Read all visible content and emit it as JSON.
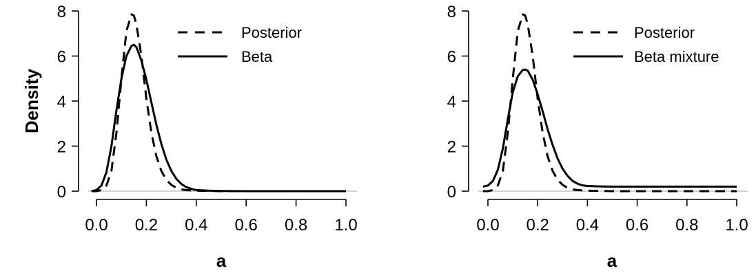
{
  "chart_data": [
    {
      "type": "line",
      "title": "",
      "xlabel": "a",
      "ylabel": "Density",
      "xlim": [
        -0.03,
        1.03
      ],
      "ylim": [
        0,
        8
      ],
      "x_ticks": [
        "0.0",
        "0.2",
        "0.4",
        "0.6",
        "0.8",
        "1.0"
      ],
      "y_ticks": [
        "0",
        "2",
        "4",
        "6",
        "8"
      ],
      "legend": "top-right",
      "series": [
        {
          "name": "Posterior",
          "style": "dashed",
          "color": "#000000",
          "x": [
            -0.02,
            0.0,
            0.02,
            0.04,
            0.06,
            0.08,
            0.1,
            0.12,
            0.14,
            0.15,
            0.16,
            0.18,
            0.2,
            0.22,
            0.24,
            0.26,
            0.28,
            0.3,
            0.32,
            0.34,
            0.36,
            0.38,
            0.4,
            0.45,
            0.5,
            0.6,
            0.7,
            0.8,
            0.9,
            1.0
          ],
          "y": [
            0.0,
            0.0,
            0.05,
            0.25,
            0.9,
            2.6,
            5.0,
            7.1,
            7.85,
            7.8,
            7.4,
            6.0,
            4.1,
            2.6,
            1.55,
            0.9,
            0.5,
            0.28,
            0.15,
            0.08,
            0.05,
            0.03,
            0.02,
            0.01,
            0.0,
            0.0,
            0.0,
            0.0,
            0.0,
            0.0
          ]
        },
        {
          "name": "Beta",
          "style": "solid",
          "color": "#000000",
          "x": [
            -0.02,
            0.0,
            0.02,
            0.04,
            0.06,
            0.08,
            0.1,
            0.12,
            0.14,
            0.15,
            0.16,
            0.18,
            0.2,
            0.22,
            0.24,
            0.26,
            0.28,
            0.3,
            0.32,
            0.34,
            0.36,
            0.38,
            0.4,
            0.45,
            0.5,
            0.6,
            0.7,
            0.8,
            0.9,
            1.0
          ],
          "y": [
            0.0,
            0.05,
            0.25,
            0.85,
            2.0,
            3.6,
            5.0,
            6.0,
            6.45,
            6.5,
            6.4,
            5.8,
            4.95,
            3.95,
            2.95,
            2.1,
            1.4,
            0.9,
            0.55,
            0.32,
            0.18,
            0.1,
            0.05,
            0.02,
            0.01,
            0.0,
            0.0,
            0.0,
            0.0,
            0.0
          ]
        }
      ]
    },
    {
      "type": "line",
      "title": "",
      "xlabel": "a",
      "ylabel": "",
      "xlim": [
        -0.03,
        1.03
      ],
      "ylim": [
        0,
        8
      ],
      "x_ticks": [
        "0.0",
        "0.2",
        "0.4",
        "0.6",
        "0.8",
        "1.0"
      ],
      "y_ticks": [
        "0",
        "2",
        "4",
        "6",
        "8"
      ],
      "legend": "top-right",
      "series": [
        {
          "name": "Posterior",
          "style": "dashed",
          "color": "#000000",
          "x": [
            -0.02,
            0.0,
            0.02,
            0.04,
            0.06,
            0.08,
            0.1,
            0.12,
            0.14,
            0.15,
            0.16,
            0.18,
            0.2,
            0.22,
            0.24,
            0.26,
            0.28,
            0.3,
            0.32,
            0.34,
            0.36,
            0.38,
            0.4,
            0.45,
            0.5,
            0.6,
            0.7,
            0.8,
            0.9,
            1.0
          ],
          "y": [
            0.0,
            0.0,
            0.05,
            0.25,
            0.9,
            2.6,
            5.0,
            7.1,
            7.85,
            7.8,
            7.4,
            6.0,
            4.1,
            2.6,
            1.55,
            0.9,
            0.5,
            0.28,
            0.15,
            0.08,
            0.05,
            0.03,
            0.02,
            0.01,
            0.0,
            0.0,
            0.0,
            0.0,
            0.0,
            0.0
          ]
        },
        {
          "name": "Beta mixture",
          "style": "solid",
          "color": "#000000",
          "x": [
            -0.02,
            0.0,
            0.02,
            0.04,
            0.06,
            0.08,
            0.1,
            0.12,
            0.14,
            0.15,
            0.16,
            0.18,
            0.2,
            0.22,
            0.24,
            0.26,
            0.28,
            0.3,
            0.32,
            0.34,
            0.36,
            0.38,
            0.4,
            0.45,
            0.5,
            0.6,
            0.7,
            0.8,
            0.9,
            1.0
          ],
          "y": [
            0.2,
            0.25,
            0.45,
            0.95,
            1.9,
            3.2,
            4.4,
            5.1,
            5.38,
            5.4,
            5.35,
            4.95,
            4.3,
            3.55,
            2.75,
            2.05,
            1.45,
            1.0,
            0.68,
            0.46,
            0.33,
            0.26,
            0.23,
            0.21,
            0.2,
            0.2,
            0.2,
            0.2,
            0.2,
            0.2
          ]
        }
      ]
    }
  ]
}
